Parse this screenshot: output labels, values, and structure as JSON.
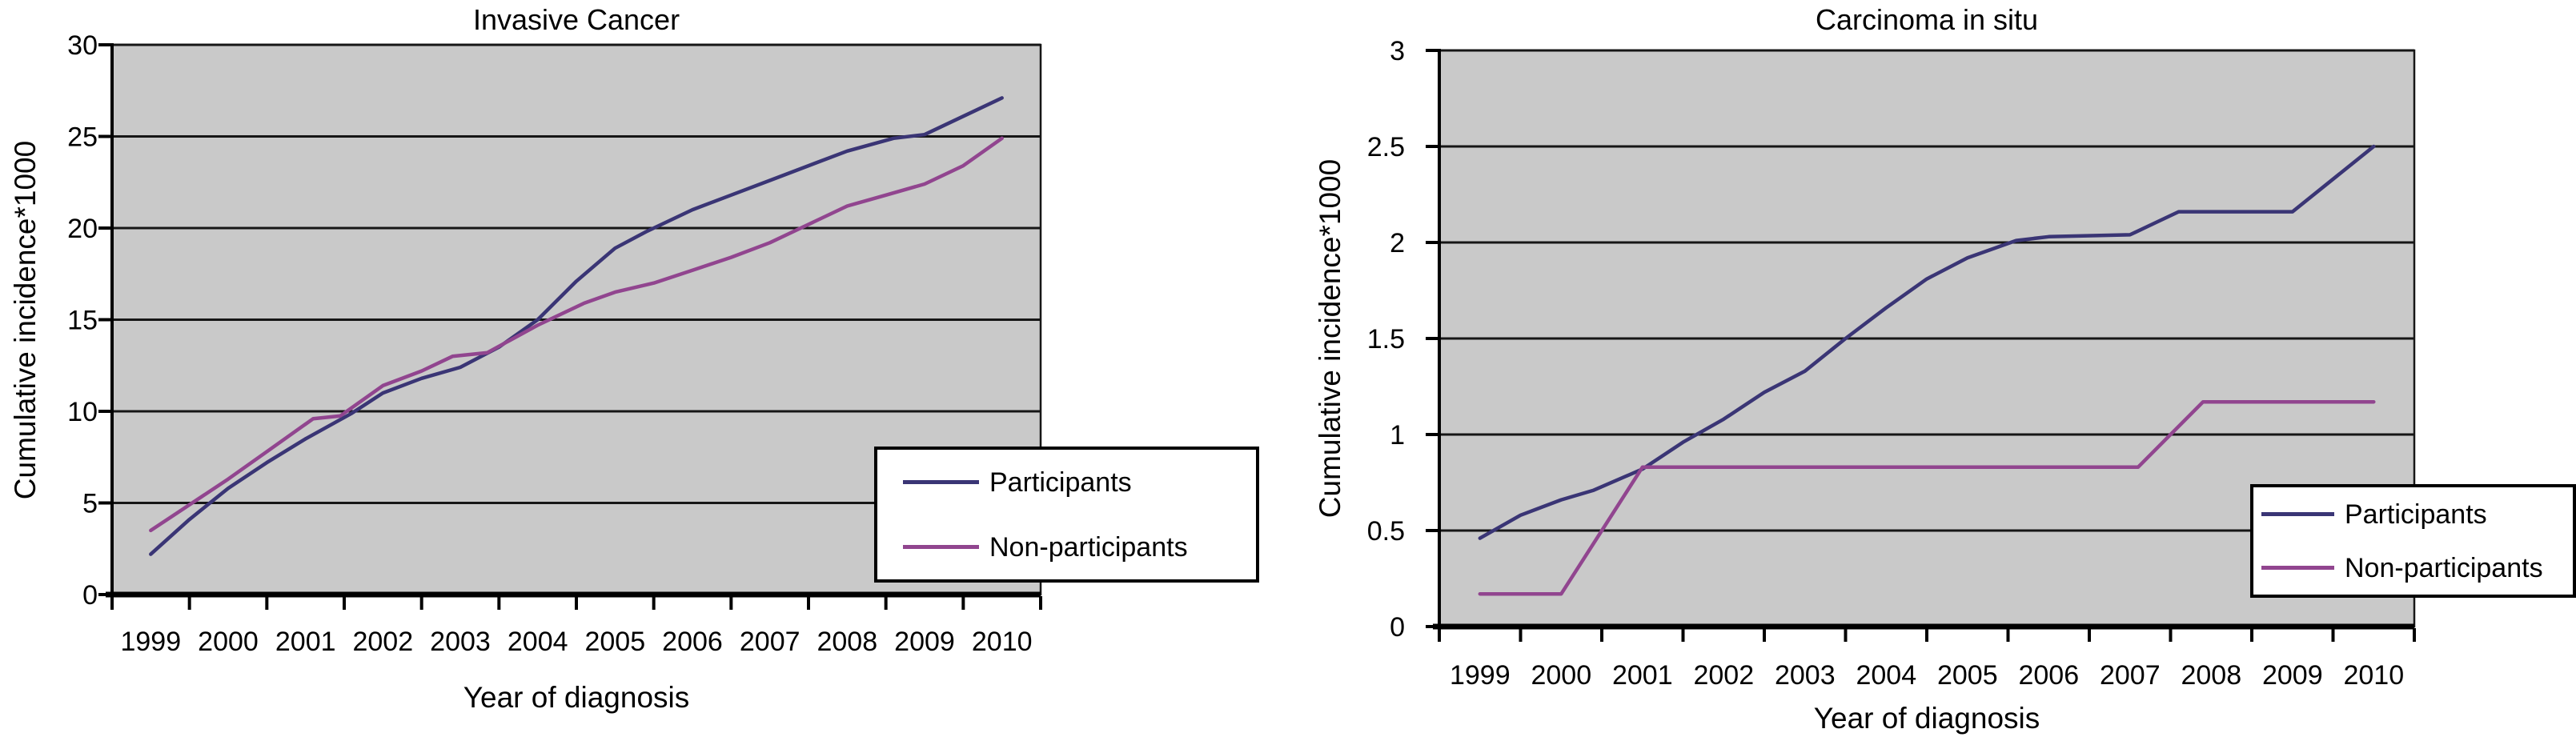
{
  "figure": {
    "description": "Two side-by-side line charts of cumulative incidence by year of diagnosis, comparing screening participants and non-participants",
    "background": "#ffffff"
  },
  "colors": {
    "participants_line": "#3a3575",
    "non_participants_line": "#91458f",
    "plot_background": "#c9c9c9",
    "gridline": "#161616",
    "axis": "#000000",
    "text": "#000000",
    "legend_background": "#ffffff",
    "legend_border": "#000000"
  },
  "chart_data": [
    {
      "type": "line",
      "title": "Invasive Cancer",
      "xlabel": "Year of diagnosis",
      "ylabel": "Cumulative incidence*1000",
      "x_start": 1999,
      "x_tick_labels": [
        "1999",
        "2000",
        "2001",
        "2002",
        "2003",
        "2004",
        "2005",
        "2006",
        "2007",
        "2008",
        "2009",
        "2010"
      ],
      "ylim": [
        0,
        30
      ],
      "y_ticks": [
        0,
        5,
        10,
        15,
        20,
        25,
        30
      ],
      "y_tick_labels": [
        "0",
        "5",
        "10",
        "15",
        "20",
        "25",
        "30"
      ],
      "grid": "horizontal-only",
      "legend_position": "bottom-right, overflowing right edge of plot",
      "series": [
        {
          "name": "Participants",
          "color": "#3a3575",
          "points": [
            [
              1999,
              2.2
            ],
            [
              1999.5,
              4.1
            ],
            [
              2000,
              5.8
            ],
            [
              2000.5,
              7.2
            ],
            [
              2001,
              8.5
            ],
            [
              2001.6,
              9.9
            ],
            [
              2002,
              11.0
            ],
            [
              2002.5,
              11.8
            ],
            [
              2003,
              12.4
            ],
            [
              2003.5,
              13.5
            ],
            [
              2004,
              15.0
            ],
            [
              2004.5,
              17.1
            ],
            [
              2005,
              18.9
            ],
            [
              2005.4,
              19.8
            ],
            [
              2006,
              21.0
            ],
            [
              2006.5,
              21.8
            ],
            [
              2007,
              22.6
            ],
            [
              2007.5,
              23.4
            ],
            [
              2008,
              24.2
            ],
            [
              2008.6,
              24.9
            ],
            [
              2009,
              25.1
            ],
            [
              2009.5,
              26.1
            ],
            [
              2010,
              27.1
            ]
          ]
        },
        {
          "name": "Non-participants",
          "color": "#91458f",
          "points": [
            [
              1999,
              3.5
            ],
            [
              1999.5,
              4.9
            ],
            [
              2000,
              6.3
            ],
            [
              2000.5,
              7.8
            ],
            [
              2001,
              9.3
            ],
            [
              2001.1,
              9.6
            ],
            [
              2001.45,
              9.75
            ],
            [
              2002,
              11.4
            ],
            [
              2002.5,
              12.2
            ],
            [
              2002.9,
              13.0
            ],
            [
              2003.35,
              13.2
            ],
            [
              2004,
              14.7
            ],
            [
              2004.6,
              15.9
            ],
            [
              2005,
              16.5
            ],
            [
              2005.5,
              17.0
            ],
            [
              2006,
              17.7
            ],
            [
              2006.5,
              18.4
            ],
            [
              2007,
              19.2
            ],
            [
              2007.4,
              20.0
            ],
            [
              2008,
              21.2
            ],
            [
              2008.5,
              21.8
            ],
            [
              2009,
              22.4
            ],
            [
              2009.5,
              23.4
            ],
            [
              2010,
              24.9
            ]
          ]
        }
      ]
    },
    {
      "type": "line",
      "title": "Carcinoma in situ",
      "xlabel": "Year of diagnosis",
      "ylabel": "Cumulative incidence*1000",
      "x_start": 1999,
      "x_tick_labels": [
        "1999",
        "2000",
        "2001",
        "2002",
        "2003",
        "2004",
        "2005",
        "2006",
        "2007",
        "2008",
        "2009",
        "2010"
      ],
      "ylim": [
        0,
        3
      ],
      "y_ticks": [
        0,
        0.5,
        1,
        1.5,
        2,
        2.5,
        3
      ],
      "y_tick_labels": [
        "0",
        "0.5",
        "1",
        "1.5",
        "2",
        "2.5",
        "3"
      ],
      "grid": "horizontal-only",
      "legend_position": "bottom-right, overflowing right edge of plot",
      "series": [
        {
          "name": "Participants",
          "color": "#3a3575",
          "points": [
            [
              1999,
              0.46
            ],
            [
              1999.5,
              0.58
            ],
            [
              2000,
              0.66
            ],
            [
              2000.4,
              0.71
            ],
            [
              2001,
              0.82
            ],
            [
              2001.5,
              0.96
            ],
            [
              2002,
              1.08
            ],
            [
              2002.5,
              1.22
            ],
            [
              2003,
              1.33
            ],
            [
              2003.5,
              1.5
            ],
            [
              2004,
              1.66
            ],
            [
              2004.5,
              1.81
            ],
            [
              2005,
              1.92
            ],
            [
              2005.6,
              2.01
            ],
            [
              2006,
              2.03
            ],
            [
              2007,
              2.04
            ],
            [
              2007.3,
              2.1
            ],
            [
              2007.6,
              2.16
            ],
            [
              2008,
              2.16
            ],
            [
              2009,
              2.16
            ],
            [
              2010,
              2.5
            ]
          ]
        },
        {
          "name": "Non-participants",
          "color": "#91458f",
          "points": [
            [
              1999,
              0.17
            ],
            [
              2000,
              0.17
            ],
            [
              2001,
              0.83
            ],
            [
              2002,
              0.83
            ],
            [
              2003,
              0.83
            ],
            [
              2004,
              0.83
            ],
            [
              2005,
              0.83
            ],
            [
              2006,
              0.83
            ],
            [
              2007,
              0.83
            ],
            [
              2007.1,
              0.83
            ],
            [
              2007.9,
              1.17
            ],
            [
              2008,
              1.17
            ],
            [
              2009,
              1.17
            ],
            [
              2010,
              1.17
            ]
          ]
        }
      ]
    }
  ]
}
